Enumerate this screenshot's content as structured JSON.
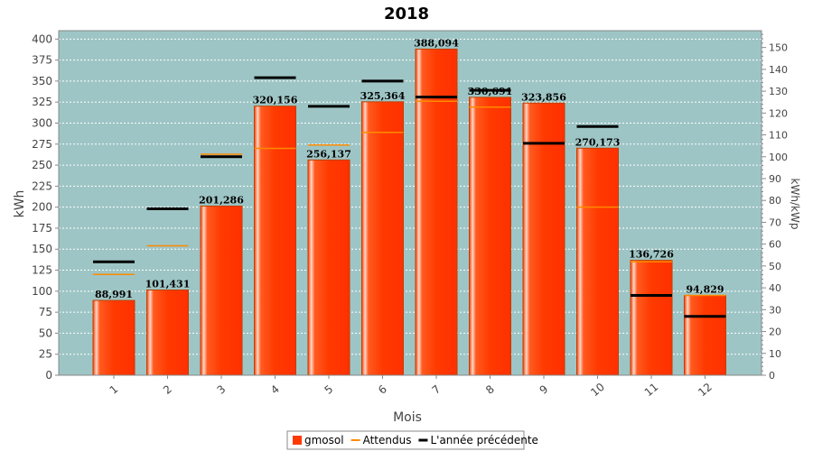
{
  "chart_data": {
    "type": "bar",
    "title": "2018",
    "xlabel": "Mois",
    "ylabel": "kWh",
    "y2label": "kWh/kWp",
    "categories": [
      "1",
      "2",
      "3",
      "4",
      "5",
      "6",
      "7",
      "8",
      "9",
      "10",
      "11",
      "12"
    ],
    "ylim": [
      0,
      410
    ],
    "yticks": [
      0,
      25,
      50,
      75,
      100,
      125,
      150,
      175,
      200,
      225,
      250,
      275,
      300,
      325,
      350,
      375,
      400
    ],
    "y2lim": [
      0,
      157.7
    ],
    "y2ticks": [
      0,
      10,
      20,
      30,
      40,
      50,
      60,
      70,
      80,
      90,
      100,
      110,
      120,
      130,
      140,
      150
    ],
    "grid": true,
    "legend_position": "bottom",
    "series": [
      {
        "name": "gmosol",
        "kind": "bar",
        "color": "#ff3a00",
        "values": [
          88.991,
          101.431,
          201.286,
          320.156,
          256.137,
          325.364,
          388.094,
          330.691,
          323.856,
          270.173,
          136.726,
          94.829
        ],
        "labels": [
          "88,991",
          "101,431",
          "201,286",
          "320,156",
          "256,137",
          "325,364",
          "388,094",
          "330,691",
          "323,856",
          "270,173",
          "136,726",
          "94,829"
        ]
      },
      {
        "name": "Attendus",
        "kind": "marker",
        "color": "#ff8a00",
        "values": [
          120,
          154,
          263,
          270,
          274,
          289,
          326,
          319,
          276,
          200,
          135,
          95
        ]
      },
      {
        "name": "L'année précédente",
        "kind": "marker",
        "color": "#000000",
        "values": [
          135,
          198,
          260,
          354,
          320,
          350,
          331,
          339,
          276,
          296,
          95,
          70
        ]
      }
    ]
  },
  "colors": {
    "plot_background": "#9ec5c5",
    "grid": "#ffffff",
    "bar_outline": "#c04000"
  }
}
